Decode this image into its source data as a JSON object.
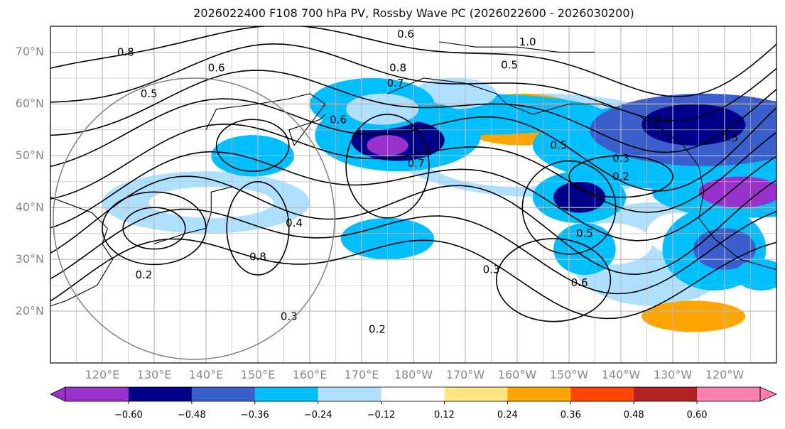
{
  "chart_data": {
    "type": "map-contour",
    "title": "2026022400 F108 700 hPa PV, Rossby Wave PC (2026022600 - 2026030200)",
    "lat_range": [
      10,
      75
    ],
    "lon_range": [
      110,
      250
    ],
    "lat_ticks": [
      "70°N",
      "60°N",
      "50°N",
      "40°N",
      "30°N",
      "20°N"
    ],
    "lon_ticks": [
      "120°E",
      "130°E",
      "140°E",
      "150°E",
      "160°E",
      "170°E",
      "180°W",
      "170°W",
      "160°W",
      "150°W",
      "140°W",
      "130°W",
      "120°W"
    ],
    "colorbar": {
      "ticks": [
        "−0.60",
        "−0.48",
        "−0.36",
        "−0.24",
        "−0.12",
        "0.12",
        "0.24",
        "0.36",
        "0.48",
        "0.60"
      ],
      "levels": [
        -0.6,
        -0.48,
        -0.36,
        -0.24,
        -0.12,
        0.12,
        0.24,
        0.36,
        0.48,
        0.6
      ],
      "colors": [
        "#9932cc",
        "#00008b",
        "#3a5fcd",
        "#00bfff",
        "#b0e0ff",
        "#ffffff",
        "#ffe680",
        "#ffa500",
        "#ff4500",
        "#b22222",
        "#ff7fae"
      ],
      "extend": "both"
    },
    "contour_labels": [
      {
        "text": "0.6",
        "lon": 178.5,
        "lat": 73.5
      },
      {
        "text": "1.0",
        "lon": 202,
        "lat": 72
      },
      {
        "text": "0.8",
        "lon": 124.5,
        "lat": 70
      },
      {
        "text": "0.6",
        "lon": 142,
        "lat": 67
      },
      {
        "text": "0.5",
        "lon": 198.5,
        "lat": 67.5
      },
      {
        "text": "0.8",
        "lon": 177,
        "lat": 67
      },
      {
        "text": "0.7",
        "lon": 176.5,
        "lat": 64
      },
      {
        "text": "0.5",
        "lon": 129,
        "lat": 62
      },
      {
        "text": "0.6",
        "lon": 165.5,
        "lat": 57
      },
      {
        "text": "0.5",
        "lon": 228,
        "lat": 57
      },
      {
        "text": "0.5",
        "lon": 241,
        "lat": 53.5
      },
      {
        "text": "0.5",
        "lon": 208,
        "lat": 52
      },
      {
        "text": "0.3",
        "lon": 220,
        "lat": 49.5
      },
      {
        "text": "0.7",
        "lon": 180.5,
        "lat": 48.5
      },
      {
        "text": "0.2",
        "lon": 220,
        "lat": 46
      },
      {
        "text": "0.5",
        "lon": 213,
        "lat": 35
      },
      {
        "text": "0.4",
        "lon": 157,
        "lat": 37
      },
      {
        "text": "0.8",
        "lon": 150,
        "lat": 30.5
      },
      {
        "text": "0.2",
        "lon": 128,
        "lat": 27
      },
      {
        "text": "0.3",
        "lon": 195,
        "lat": 28
      },
      {
        "text": "0.6",
        "lon": 212,
        "lat": 25.5
      },
      {
        "text": "0.3",
        "lon": 156,
        "lat": 19
      },
      {
        "text": "0.2",
        "lon": 173,
        "lat": 16.5
      }
    ],
    "description_hint": "Filled contours of 700 hPa PV Rossby wave principal component with black line contours of PV"
  }
}
